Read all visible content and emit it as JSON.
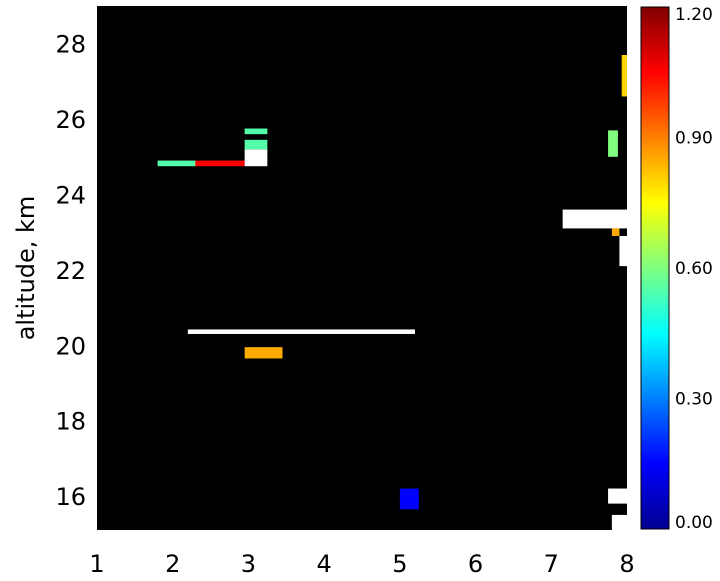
{
  "chart_data": {
    "type": "heatmap",
    "title": "",
    "xlabel": "",
    "ylabel": "altitude, km",
    "xlim": [
      1,
      8
    ],
    "ylim": [
      15.1,
      29
    ],
    "x_ticks": [
      "1",
      "2",
      "3",
      "4",
      "5",
      "6",
      "7",
      "8"
    ],
    "y_ticks": [
      "16",
      "18",
      "20",
      "22",
      "24",
      "26",
      "28"
    ],
    "colorbar": {
      "range": [
        0.0,
        1.2
      ],
      "tick_labels": [
        "0.00",
        "0.30",
        "0.60",
        "0.90",
        "1.20"
      ],
      "colormap": "jet",
      "background_color": "#000000",
      "saturated_color": "#ffffff"
    },
    "cells": [
      {
        "x0": 1.8,
        "x1": 2.3,
        "y0": 24.75,
        "y1": 24.9,
        "value": 0.55
      },
      {
        "x0": 2.3,
        "x1": 2.95,
        "y0": 24.75,
        "y1": 24.9,
        "value": 1.05
      },
      {
        "x0": 2.95,
        "x1": 3.25,
        "y0": 24.75,
        "y1": 25.2,
        "value": 1.3
      },
      {
        "x0": 2.95,
        "x1": 3.25,
        "y0": 25.2,
        "y1": 25.45,
        "value": 0.55
      },
      {
        "x0": 2.95,
        "x1": 3.25,
        "y0": 25.6,
        "y1": 25.75,
        "value": 0.55
      },
      {
        "x0": 2.2,
        "x1": 5.2,
        "y0": 20.3,
        "y1": 20.42,
        "value": 1.3
      },
      {
        "x0": 2.95,
        "x1": 3.45,
        "y0": 19.65,
        "y1": 19.95,
        "value": 0.85
      },
      {
        "x0": 5.0,
        "x1": 5.25,
        "y0": 15.65,
        "y1": 16.2,
        "value": 0.15
      },
      {
        "x0": 7.75,
        "x1": 7.88,
        "y0": 25.0,
        "y1": 25.7,
        "value": 0.6
      },
      {
        "x0": 7.15,
        "x1": 8.0,
        "y0": 23.1,
        "y1": 23.6,
        "value": 1.3
      },
      {
        "x0": 7.8,
        "x1": 7.9,
        "y0": 22.9,
        "y1": 23.1,
        "value": 0.85
      },
      {
        "x0": 7.9,
        "x1": 8.0,
        "y0": 22.1,
        "y1": 22.9,
        "value": 1.3
      },
      {
        "x0": 7.75,
        "x1": 8.0,
        "y0": 15.8,
        "y1": 16.2,
        "value": 1.3
      },
      {
        "x0": 7.8,
        "x1": 8.0,
        "y0": 15.1,
        "y1": 15.5,
        "value": 1.3
      },
      {
        "x0": 7.93,
        "x1": 8.0,
        "y0": 26.6,
        "y1": 27.7,
        "value": 0.8
      }
    ]
  }
}
